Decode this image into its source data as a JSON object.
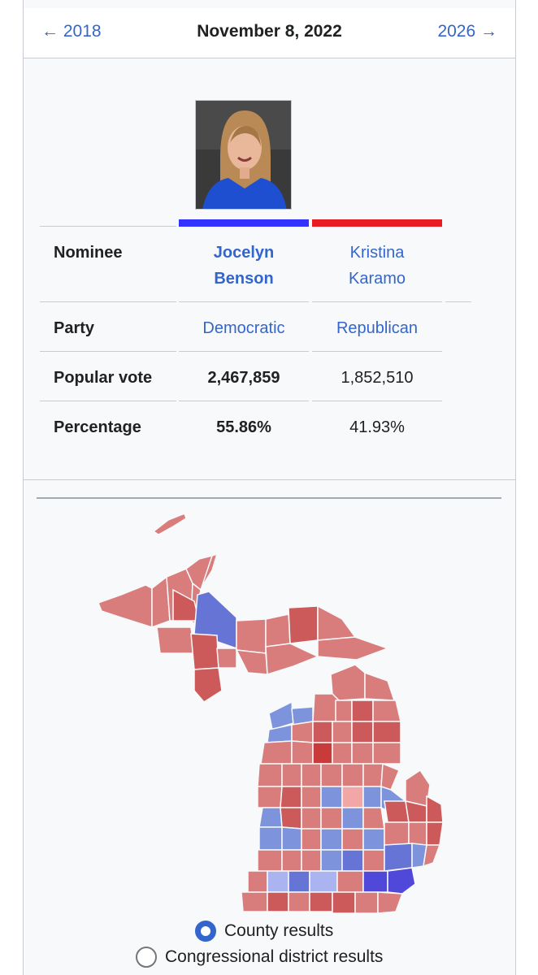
{
  "nav": {
    "prev_label": "← 2018",
    "date": "November 8, 2022",
    "next_label": "2026 →"
  },
  "candidates": {
    "row_labels": {
      "nominee": "Nominee",
      "party": "Party",
      "popular_vote": "Popular vote",
      "percentage": "Percentage"
    },
    "dem": {
      "name_line1": "Jocelyn",
      "name_line2": "Benson",
      "party": "Democratic",
      "votes": "2,467,859",
      "percentage": "55.86%",
      "color": "#3333ff"
    },
    "rep": {
      "name_line1": "Kristina",
      "name_line2": "Karamo",
      "party": "Republican",
      "votes": "1,852,510",
      "percentage": "41.93%",
      "color": "#e81b23"
    }
  },
  "map": {
    "colors": {
      "rep_light": "#d87c7c",
      "rep_mid": "#cc5a5a",
      "rep_dark": "#c93a3a",
      "dem_light": "#7d94dc",
      "dem_pale": "#a9b4f0",
      "dem_mid": "#6674d6",
      "dem_dark": "#5048d8",
      "tossup_pink": "#f2a7a7"
    },
    "options": {
      "county": "County results",
      "congressional": "Congressional district results"
    },
    "selected": "county"
  }
}
